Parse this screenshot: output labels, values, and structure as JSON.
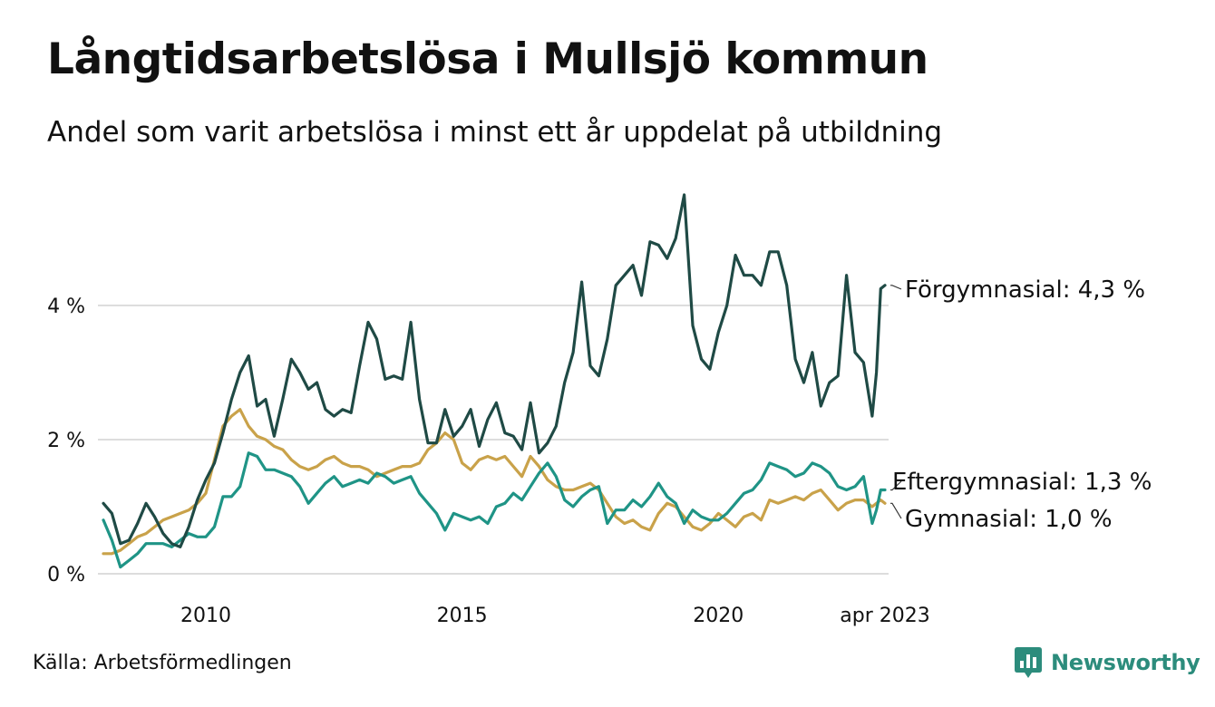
{
  "header": {
    "title": "Långtidsarbetslösa i Mullsjö kommun",
    "subtitle": "Andel som varit arbetslösa i minst ett år uppdelat på utbildning"
  },
  "footer": {
    "source": "Källa: Arbetsförmedlingen",
    "brand": "Newsworthy"
  },
  "colors": {
    "forgymnasial": "#1f4a45",
    "eftergymnasial": "#1f9486",
    "gymnasial": "#c9a24a",
    "grid": "#dddddd",
    "brand": "#2c8c7c"
  },
  "chart_data": {
    "type": "line",
    "title": "Långtidsarbetslösa i Mullsjö kommun",
    "subtitle": "Andel som varit arbetslösa i minst ett år uppdelat på utbildning",
    "xlabel": "",
    "ylabel": "",
    "x_range": [
      "2008-01",
      "2023-04"
    ],
    "ylim": [
      0,
      6
    ],
    "y_ticks": [
      0,
      2,
      4
    ],
    "y_tick_labels": [
      "0 %",
      "2 %",
      "4 %"
    ],
    "x_ticks": [
      "2010-01",
      "2015-01",
      "2020-01",
      "2023-04"
    ],
    "x_tick_labels": [
      "2010",
      "2015",
      "2020",
      "apr 2023"
    ],
    "grid": true,
    "legend": "direct labels at line ends",
    "series": [
      {
        "name": "Förgymnasial",
        "end_label": "Förgymnasial: 4,3 %",
        "points": [
          [
            "2008-01",
            1.05
          ],
          [
            "2008-03",
            0.9
          ],
          [
            "2008-05",
            0.45
          ],
          [
            "2008-07",
            0.5
          ],
          [
            "2008-09",
            0.75
          ],
          [
            "2008-11",
            1.05
          ],
          [
            "2009-01",
            0.85
          ],
          [
            "2009-03",
            0.6
          ],
          [
            "2009-05",
            0.45
          ],
          [
            "2009-07",
            0.4
          ],
          [
            "2009-09",
            0.7
          ],
          [
            "2009-11",
            1.1
          ],
          [
            "2010-01",
            1.4
          ],
          [
            "2010-03",
            1.65
          ],
          [
            "2010-05",
            2.1
          ],
          [
            "2010-07",
            2.6
          ],
          [
            "2010-09",
            3.0
          ],
          [
            "2010-11",
            3.25
          ],
          [
            "2011-01",
            2.5
          ],
          [
            "2011-03",
            2.6
          ],
          [
            "2011-05",
            2.05
          ],
          [
            "2011-07",
            2.6
          ],
          [
            "2011-09",
            3.2
          ],
          [
            "2011-11",
            3.0
          ],
          [
            "2012-01",
            2.75
          ],
          [
            "2012-03",
            2.85
          ],
          [
            "2012-05",
            2.45
          ],
          [
            "2012-07",
            2.35
          ],
          [
            "2012-09",
            2.45
          ],
          [
            "2012-11",
            2.4
          ],
          [
            "2013-01",
            3.1
          ],
          [
            "2013-03",
            3.75
          ],
          [
            "2013-05",
            3.5
          ],
          [
            "2013-07",
            2.9
          ],
          [
            "2013-09",
            2.95
          ],
          [
            "2013-11",
            2.9
          ],
          [
            "2014-01",
            3.75
          ],
          [
            "2014-03",
            2.6
          ],
          [
            "2014-05",
            1.95
          ],
          [
            "2014-07",
            1.95
          ],
          [
            "2014-09",
            2.45
          ],
          [
            "2014-11",
            2.05
          ],
          [
            "2015-01",
            2.2
          ],
          [
            "2015-03",
            2.45
          ],
          [
            "2015-05",
            1.9
          ],
          [
            "2015-07",
            2.3
          ],
          [
            "2015-09",
            2.55
          ],
          [
            "2015-11",
            2.1
          ],
          [
            "2016-01",
            2.05
          ],
          [
            "2016-03",
            1.85
          ],
          [
            "2016-05",
            2.55
          ],
          [
            "2016-07",
            1.8
          ],
          [
            "2016-09",
            1.95
          ],
          [
            "2016-11",
            2.2
          ],
          [
            "2017-01",
            2.85
          ],
          [
            "2017-03",
            3.3
          ],
          [
            "2017-05",
            4.35
          ],
          [
            "2017-07",
            3.1
          ],
          [
            "2017-09",
            2.95
          ],
          [
            "2017-11",
            3.5
          ],
          [
            "2018-01",
            4.3
          ],
          [
            "2018-03",
            4.45
          ],
          [
            "2018-05",
            4.6
          ],
          [
            "2018-07",
            4.15
          ],
          [
            "2018-09",
            4.95
          ],
          [
            "2018-11",
            4.9
          ],
          [
            "2019-01",
            4.7
          ],
          [
            "2019-03",
            5.0
          ],
          [
            "2019-05",
            5.65
          ],
          [
            "2019-07",
            3.7
          ],
          [
            "2019-09",
            3.2
          ],
          [
            "2019-11",
            3.05
          ],
          [
            "2020-01",
            3.6
          ],
          [
            "2020-03",
            4.0
          ],
          [
            "2020-05",
            4.75
          ],
          [
            "2020-07",
            4.45
          ],
          [
            "2020-09",
            4.45
          ],
          [
            "2020-11",
            4.3
          ],
          [
            "2021-01",
            4.8
          ],
          [
            "2021-03",
            4.8
          ],
          [
            "2021-05",
            4.3
          ],
          [
            "2021-07",
            3.2
          ],
          [
            "2021-09",
            2.85
          ],
          [
            "2021-11",
            3.3
          ],
          [
            "2022-01",
            2.5
          ],
          [
            "2022-03",
            2.85
          ],
          [
            "2022-05",
            2.95
          ],
          [
            "2022-07",
            4.45
          ],
          [
            "2022-09",
            3.3
          ],
          [
            "2022-11",
            3.15
          ],
          [
            "2023-01",
            2.35
          ],
          [
            "2023-02",
            3.0
          ],
          [
            "2023-03",
            4.25
          ],
          [
            "2023-04",
            4.3
          ]
        ]
      },
      {
        "name": "Eftergymnasial",
        "end_label": "Eftergymnasial: 1,3 %",
        "points": [
          [
            "2008-01",
            0.8
          ],
          [
            "2008-03",
            0.5
          ],
          [
            "2008-05",
            0.1
          ],
          [
            "2008-07",
            0.2
          ],
          [
            "2008-09",
            0.3
          ],
          [
            "2008-11",
            0.45
          ],
          [
            "2009-01",
            0.45
          ],
          [
            "2009-03",
            0.45
          ],
          [
            "2009-05",
            0.4
          ],
          [
            "2009-07",
            0.5
          ],
          [
            "2009-09",
            0.6
          ],
          [
            "2009-11",
            0.55
          ],
          [
            "2010-01",
            0.55
          ],
          [
            "2010-03",
            0.7
          ],
          [
            "2010-05",
            1.15
          ],
          [
            "2010-07",
            1.15
          ],
          [
            "2010-09",
            1.3
          ],
          [
            "2010-11",
            1.8
          ],
          [
            "2011-01",
            1.75
          ],
          [
            "2011-03",
            1.55
          ],
          [
            "2011-05",
            1.55
          ],
          [
            "2011-07",
            1.5
          ],
          [
            "2011-09",
            1.45
          ],
          [
            "2011-11",
            1.3
          ],
          [
            "2012-01",
            1.05
          ],
          [
            "2012-03",
            1.2
          ],
          [
            "2012-05",
            1.35
          ],
          [
            "2012-07",
            1.45
          ],
          [
            "2012-09",
            1.3
          ],
          [
            "2012-11",
            1.35
          ],
          [
            "2013-01",
            1.4
          ],
          [
            "2013-03",
            1.35
          ],
          [
            "2013-05",
            1.5
          ],
          [
            "2013-07",
            1.45
          ],
          [
            "2013-09",
            1.35
          ],
          [
            "2013-11",
            1.4
          ],
          [
            "2014-01",
            1.45
          ],
          [
            "2014-03",
            1.2
          ],
          [
            "2014-05",
            1.05
          ],
          [
            "2014-07",
            0.9
          ],
          [
            "2014-09",
            0.65
          ],
          [
            "2014-11",
            0.9
          ],
          [
            "2015-01",
            0.85
          ],
          [
            "2015-03",
            0.8
          ],
          [
            "2015-05",
            0.85
          ],
          [
            "2015-07",
            0.75
          ],
          [
            "2015-09",
            1.0
          ],
          [
            "2015-11",
            1.05
          ],
          [
            "2016-01",
            1.2
          ],
          [
            "2016-03",
            1.1
          ],
          [
            "2016-05",
            1.3
          ],
          [
            "2016-07",
            1.5
          ],
          [
            "2016-09",
            1.65
          ],
          [
            "2016-11",
            1.45
          ],
          [
            "2017-01",
            1.1
          ],
          [
            "2017-03",
            1.0
          ],
          [
            "2017-05",
            1.15
          ],
          [
            "2017-07",
            1.25
          ],
          [
            "2017-09",
            1.3
          ],
          [
            "2017-11",
            0.75
          ],
          [
            "2018-01",
            0.95
          ],
          [
            "2018-03",
            0.95
          ],
          [
            "2018-05",
            1.1
          ],
          [
            "2018-07",
            1.0
          ],
          [
            "2018-09",
            1.15
          ],
          [
            "2018-11",
            1.35
          ],
          [
            "2019-01",
            1.15
          ],
          [
            "2019-03",
            1.05
          ],
          [
            "2019-05",
            0.75
          ],
          [
            "2019-07",
            0.95
          ],
          [
            "2019-09",
            0.85
          ],
          [
            "2019-11",
            0.8
          ],
          [
            "2020-01",
            0.8
          ],
          [
            "2020-03",
            0.9
          ],
          [
            "2020-05",
            1.05
          ],
          [
            "2020-07",
            1.2
          ],
          [
            "2020-09",
            1.25
          ],
          [
            "2020-11",
            1.4
          ],
          [
            "2021-01",
            1.65
          ],
          [
            "2021-03",
            1.6
          ],
          [
            "2021-05",
            1.55
          ],
          [
            "2021-07",
            1.45
          ],
          [
            "2021-09",
            1.5
          ],
          [
            "2021-11",
            1.65
          ],
          [
            "2022-01",
            1.6
          ],
          [
            "2022-03",
            1.5
          ],
          [
            "2022-05",
            1.3
          ],
          [
            "2022-07",
            1.25
          ],
          [
            "2022-09",
            1.3
          ],
          [
            "2022-11",
            1.45
          ],
          [
            "2023-01",
            0.75
          ],
          [
            "2023-02",
            0.95
          ],
          [
            "2023-03",
            1.25
          ],
          [
            "2023-04",
            1.25
          ]
        ]
      },
      {
        "name": "Gymnasial",
        "end_label": "Gymnasial: 1,0 %",
        "points": [
          [
            "2008-01",
            0.3
          ],
          [
            "2008-03",
            0.3
          ],
          [
            "2008-05",
            0.35
          ],
          [
            "2008-07",
            0.45
          ],
          [
            "2008-09",
            0.55
          ],
          [
            "2008-11",
            0.6
          ],
          [
            "2009-01",
            0.7
          ],
          [
            "2009-03",
            0.8
          ],
          [
            "2009-05",
            0.85
          ],
          [
            "2009-07",
            0.9
          ],
          [
            "2009-09",
            0.95
          ],
          [
            "2009-11",
            1.05
          ],
          [
            "2010-01",
            1.2
          ],
          [
            "2010-03",
            1.7
          ],
          [
            "2010-05",
            2.2
          ],
          [
            "2010-07",
            2.35
          ],
          [
            "2010-09",
            2.45
          ],
          [
            "2010-11",
            2.2
          ],
          [
            "2011-01",
            2.05
          ],
          [
            "2011-03",
            2.0
          ],
          [
            "2011-05",
            1.9
          ],
          [
            "2011-07",
            1.85
          ],
          [
            "2011-09",
            1.7
          ],
          [
            "2011-11",
            1.6
          ],
          [
            "2012-01",
            1.55
          ],
          [
            "2012-03",
            1.6
          ],
          [
            "2012-05",
            1.7
          ],
          [
            "2012-07",
            1.75
          ],
          [
            "2012-09",
            1.65
          ],
          [
            "2012-11",
            1.6
          ],
          [
            "2013-01",
            1.6
          ],
          [
            "2013-03",
            1.55
          ],
          [
            "2013-05",
            1.45
          ],
          [
            "2013-07",
            1.5
          ],
          [
            "2013-09",
            1.55
          ],
          [
            "2013-11",
            1.6
          ],
          [
            "2014-01",
            1.6
          ],
          [
            "2014-03",
            1.65
          ],
          [
            "2014-05",
            1.85
          ],
          [
            "2014-07",
            1.95
          ],
          [
            "2014-09",
            2.1
          ],
          [
            "2014-11",
            2.0
          ],
          [
            "2015-01",
            1.65
          ],
          [
            "2015-03",
            1.55
          ],
          [
            "2015-05",
            1.7
          ],
          [
            "2015-07",
            1.75
          ],
          [
            "2015-09",
            1.7
          ],
          [
            "2015-11",
            1.75
          ],
          [
            "2016-01",
            1.6
          ],
          [
            "2016-03",
            1.45
          ],
          [
            "2016-05",
            1.75
          ],
          [
            "2016-07",
            1.6
          ],
          [
            "2016-09",
            1.4
          ],
          [
            "2016-11",
            1.3
          ],
          [
            "2017-01",
            1.25
          ],
          [
            "2017-03",
            1.25
          ],
          [
            "2017-05",
            1.3
          ],
          [
            "2017-07",
            1.35
          ],
          [
            "2017-09",
            1.25
          ],
          [
            "2017-11",
            1.05
          ],
          [
            "2018-01",
            0.85
          ],
          [
            "2018-03",
            0.75
          ],
          [
            "2018-05",
            0.8
          ],
          [
            "2018-07",
            0.7
          ],
          [
            "2018-09",
            0.65
          ],
          [
            "2018-11",
            0.9
          ],
          [
            "2019-01",
            1.05
          ],
          [
            "2019-03",
            1.0
          ],
          [
            "2019-05",
            0.85
          ],
          [
            "2019-07",
            0.7
          ],
          [
            "2019-09",
            0.65
          ],
          [
            "2019-11",
            0.75
          ],
          [
            "2020-01",
            0.9
          ],
          [
            "2020-03",
            0.8
          ],
          [
            "2020-05",
            0.7
          ],
          [
            "2020-07",
            0.85
          ],
          [
            "2020-09",
            0.9
          ],
          [
            "2020-11",
            0.8
          ],
          [
            "2021-01",
            1.1
          ],
          [
            "2021-03",
            1.05
          ],
          [
            "2021-05",
            1.1
          ],
          [
            "2021-07",
            1.15
          ],
          [
            "2021-09",
            1.1
          ],
          [
            "2021-11",
            1.2
          ],
          [
            "2022-01",
            1.25
          ],
          [
            "2022-03",
            1.1
          ],
          [
            "2022-05",
            0.95
          ],
          [
            "2022-07",
            1.05
          ],
          [
            "2022-09",
            1.1
          ],
          [
            "2022-11",
            1.1
          ],
          [
            "2023-01",
            1.0
          ],
          [
            "2023-02",
            1.05
          ],
          [
            "2023-03",
            1.1
          ],
          [
            "2023-04",
            1.05
          ]
        ]
      }
    ]
  }
}
